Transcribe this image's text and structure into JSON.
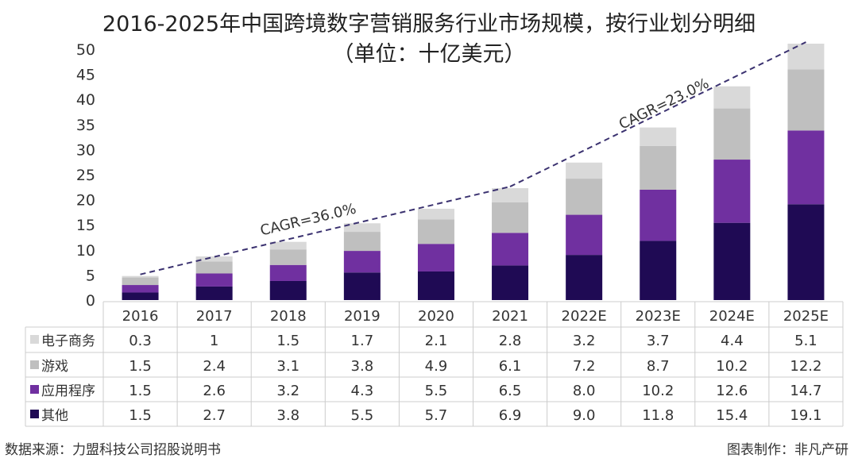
{
  "chart_data": {
    "type": "bar",
    "stacked": true,
    "title": "2016-2025年中国跨境数字营销服务行业市场规模，按行业划分明细",
    "subtitle": "（单位：十亿美元）",
    "categories": [
      "2016",
      "2017",
      "2018",
      "2019",
      "2020",
      "2021",
      "2022E",
      "2023E",
      "2024E",
      "2025E"
    ],
    "series": [
      {
        "name": "其他",
        "color": "#1f0a54",
        "values": [
          1.5,
          2.7,
          3.8,
          5.5,
          5.7,
          6.9,
          9.0,
          11.8,
          15.4,
          19.1
        ]
      },
      {
        "name": "应用程序",
        "color": "#7030a0",
        "values": [
          1.5,
          2.6,
          3.2,
          4.3,
          5.5,
          6.5,
          8.0,
          10.2,
          12.6,
          14.7
        ]
      },
      {
        "name": "游戏",
        "color": "#bfbfbf",
        "values": [
          1.5,
          2.4,
          3.1,
          3.8,
          4.9,
          6.1,
          7.2,
          8.7,
          10.2,
          12.2
        ]
      },
      {
        "name": "电子商务",
        "color": "#d9d9d9",
        "values": [
          0.3,
          1,
          1.5,
          1.7,
          2.1,
          2.8,
          3.2,
          3.7,
          4.4,
          5.1
        ]
      }
    ],
    "value_labels": {
      "电子商务": [
        "0.3",
        "1",
        "1.5",
        "1.7",
        "2.1",
        "2.8",
        "3.2",
        "3.7",
        "4.4",
        "5.1"
      ],
      "游戏": [
        "1.5",
        "2.4",
        "3.1",
        "3.8",
        "4.9",
        "6.1",
        "7.2",
        "8.7",
        "10.2",
        "12.2"
      ],
      "应用程序": [
        "1.5",
        "2.6",
        "3.2",
        "4.3",
        "5.5",
        "6.5",
        "8.0",
        "10.2",
        "12.6",
        "14.7"
      ],
      "其他": [
        "1.5",
        "2.7",
        "3.8",
        "5.5",
        "5.7",
        "6.9",
        "9.0",
        "11.8",
        "15.4",
        "19.1"
      ]
    },
    "ylim": [
      0,
      50
    ],
    "yticks": [
      0,
      5,
      10,
      15,
      20,
      25,
      30,
      35,
      40,
      45,
      50
    ],
    "grid": false,
    "legend": "data-table",
    "annotations": [
      {
        "text": "CAGR=36.0%",
        "from": "2016",
        "to": "2021"
      },
      {
        "text": "CAGR=23.0%",
        "from": "2021",
        "to": "2025E"
      }
    ]
  },
  "footer": {
    "source": "数据来源：力盟科技公司招股说明书",
    "credit": "图表制作：非凡产研"
  }
}
